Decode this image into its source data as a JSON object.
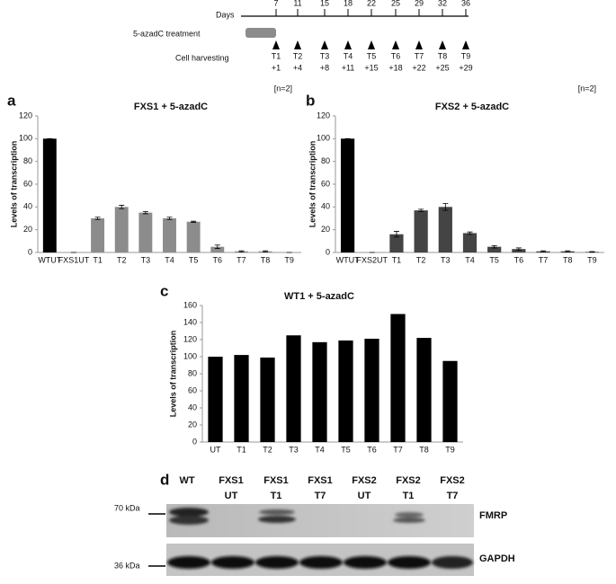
{
  "timeline": {
    "days_label": "Days",
    "days": [
      7,
      11,
      15,
      18,
      22,
      25,
      29,
      32,
      36
    ],
    "treatment_label": "5-azadC treatment",
    "harvest_label": "Cell harvesting",
    "harvests": [
      {
        "label": "T1",
        "day": "+1"
      },
      {
        "label": "T2",
        "day": "+4"
      },
      {
        "label": "T3",
        "day": "+8"
      },
      {
        "label": "T4",
        "day": "+11"
      },
      {
        "label": "T5",
        "day": "+15"
      },
      {
        "label": "T6",
        "day": "+18"
      },
      {
        "label": "T7",
        "day": "+22"
      },
      {
        "label": "T8",
        "day": "+25"
      },
      {
        "label": "T9",
        "day": "+29"
      }
    ]
  },
  "chart_data": [
    {
      "type": "bar",
      "panel": "a",
      "title": "FXS1 + 5-azadC",
      "note": "[n=2]",
      "ylabel": "Levels of transcription",
      "categories": [
        "WTUT",
        "FXS1UT",
        "T1",
        "T2",
        "T3",
        "T4",
        "T5",
        "T6",
        "T7",
        "T8",
        "T9"
      ],
      "values": [
        100,
        0,
        30,
        40,
        35,
        30,
        27,
        5,
        1,
        1,
        0
      ],
      "errors": [
        0,
        0,
        1,
        1.5,
        1,
        1,
        0.5,
        1.5,
        0.5,
        0.5,
        0
      ],
      "colors": [
        "#000000",
        "#8c8c8c",
        "#8c8c8c",
        "#8c8c8c",
        "#8c8c8c",
        "#8c8c8c",
        "#8c8c8c",
        "#8c8c8c",
        "#8c8c8c",
        "#8c8c8c",
        "#8c8c8c"
      ],
      "ylim": [
        0,
        120
      ],
      "yticks": [
        0,
        20,
        40,
        60,
        80,
        100,
        120
      ]
    },
    {
      "type": "bar",
      "panel": "b",
      "title": "FXS2 + 5-azadC",
      "note": "[n=2]",
      "ylabel": "Levels of transcription",
      "categories": [
        "WTUT",
        "FXS2UT",
        "T1",
        "T2",
        "T3",
        "T4",
        "T5",
        "T6",
        "T7",
        "T8",
        "T9"
      ],
      "values": [
        100,
        0,
        16,
        37,
        40,
        17,
        5,
        3,
        1,
        1,
        0.5
      ],
      "errors": [
        0,
        0,
        2.5,
        1,
        3,
        1,
        1,
        1,
        0.5,
        0.5,
        0.3
      ],
      "colors": [
        "#000000",
        "#444444",
        "#444444",
        "#444444",
        "#444444",
        "#444444",
        "#444444",
        "#444444",
        "#444444",
        "#444444",
        "#444444"
      ],
      "ylim": [
        0,
        120
      ],
      "yticks": [
        0,
        20,
        40,
        60,
        80,
        100,
        120
      ]
    },
    {
      "type": "bar",
      "panel": "c",
      "title": "WT1 + 5-azadC",
      "ylabel": "Levels of transcription",
      "categories": [
        "UT",
        "T1",
        "T2",
        "T3",
        "T4",
        "T5",
        "T6",
        "T7",
        "T8",
        "T9"
      ],
      "values": [
        100,
        102,
        99,
        125,
        117,
        119,
        121,
        150,
        122,
        95
      ],
      "colors": [
        "#000000",
        "#000000",
        "#000000",
        "#000000",
        "#000000",
        "#000000",
        "#000000",
        "#000000",
        "#000000",
        "#000000"
      ],
      "ylim": [
        0,
        160
      ],
      "yticks": [
        0,
        20,
        40,
        60,
        80,
        100,
        120,
        140,
        160
      ]
    }
  ],
  "blot": {
    "panel": "d",
    "lanes": [
      [
        "WT"
      ],
      [
        "FXS1",
        "UT"
      ],
      [
        "FXS1",
        "T1"
      ],
      [
        "FXS1",
        "T7"
      ],
      [
        "FXS2",
        "UT"
      ],
      [
        "FXS2",
        "T1"
      ],
      [
        "FXS2",
        "T7"
      ]
    ],
    "markers": [
      "70 kDa",
      "36 kDa"
    ],
    "proteins": [
      "FMRP",
      "GAPDH"
    ]
  }
}
